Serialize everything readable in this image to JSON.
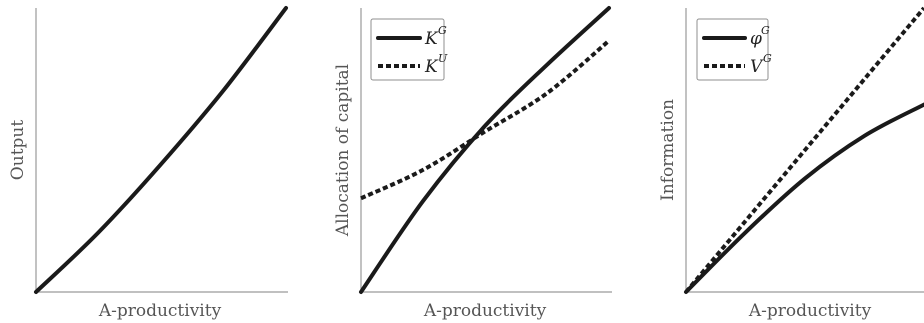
{
  "chart_data": [
    {
      "type": "line",
      "xlabel": "A-productivity",
      "ylabel": "Output",
      "ylim": [
        0,
        1
      ],
      "xlim": [
        0,
        1
      ],
      "grid": false,
      "series": [
        {
          "name": "",
          "style": "solid",
          "x": [
            0,
            0.25,
            0.5,
            0.75,
            1
          ],
          "y": [
            0,
            0.21,
            0.45,
            0.71,
            1
          ]
        }
      ]
    },
    {
      "type": "line",
      "xlabel": "A-productivity",
      "ylabel": "Allocation of capital",
      "ylim": [
        0,
        1
      ],
      "xlim": [
        0,
        1
      ],
      "grid": false,
      "legend_position": "top-left",
      "series": [
        {
          "name": "K",
          "name_sup": "G",
          "style": "solid",
          "x": [
            0,
            0.25,
            0.5,
            0.75,
            1
          ],
          "y": [
            0,
            0.32,
            0.585,
            0.8,
            1
          ]
        },
        {
          "name": "K",
          "name_sup": "U",
          "style": "dotted",
          "x": [
            0,
            0.25,
            0.5,
            0.75,
            1
          ],
          "y": [
            0.33,
            0.43,
            0.565,
            0.7,
            0.885
          ]
        }
      ]
    },
    {
      "type": "line",
      "xlabel": "A-productivity",
      "ylabel": "Information",
      "ylim": [
        0,
        1
      ],
      "xlim": [
        0,
        1
      ],
      "grid": false,
      "legend_position": "top-left",
      "series": [
        {
          "name": "φ",
          "name_sup": "G",
          "style": "solid",
          "x": [
            0,
            0.25,
            0.5,
            0.75,
            1
          ],
          "y": [
            0,
            0.21,
            0.4,
            0.55,
            0.66
          ]
        },
        {
          "name": "V",
          "name_sup": "G",
          "style": "dotted",
          "x": [
            0,
            0.25,
            0.5,
            0.75,
            1
          ],
          "y": [
            0,
            0.25,
            0.5,
            0.75,
            1
          ]
        }
      ]
    }
  ]
}
